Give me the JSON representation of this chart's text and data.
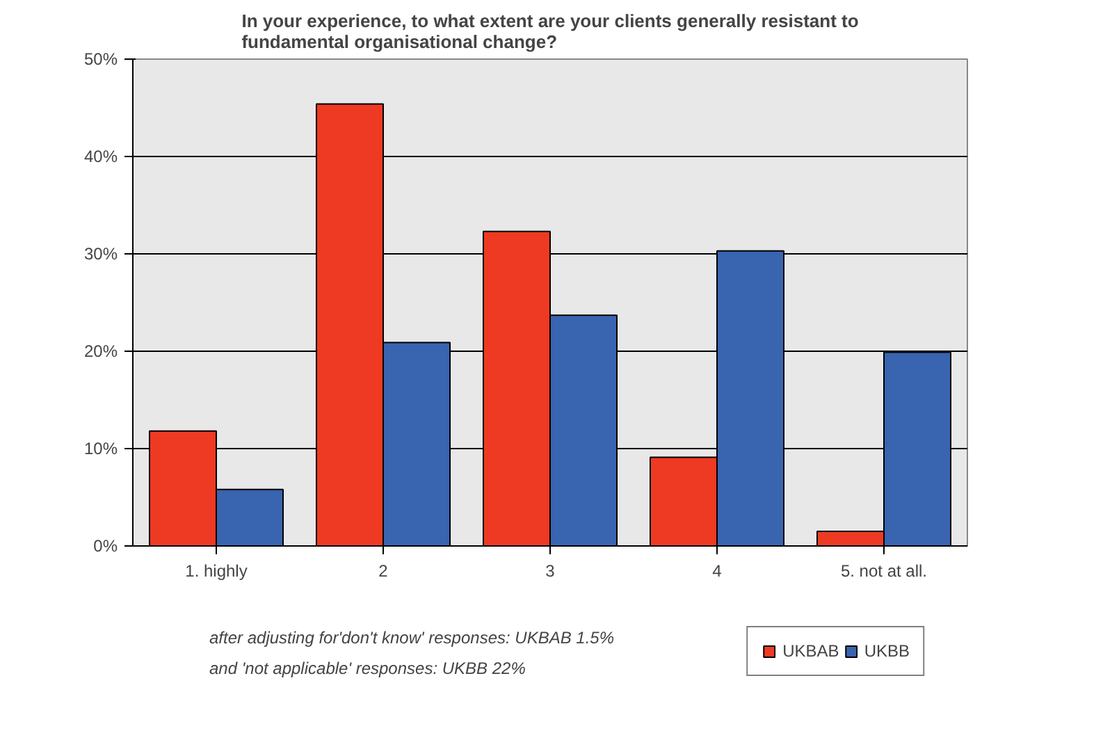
{
  "chart_data": {
    "type": "bar",
    "title": "In your experience, to what extent are your clients generally resistant to\nfundamental organisational change?",
    "categories": [
      "1. highly",
      "2",
      "3",
      "4",
      "5. not at all."
    ],
    "series": [
      {
        "name": "UKBAB",
        "color": "#ee3a22",
        "values": [
          11.8,
          45.4,
          32.3,
          9.1,
          1.5
        ]
      },
      {
        "name": "UKBB",
        "color": "#3864b0",
        "values": [
          5.8,
          20.9,
          23.7,
          30.3,
          19.9
        ]
      }
    ],
    "ylim": [
      0,
      50
    ],
    "yticks": [
      {
        "value": 0,
        "label": "0%"
      },
      {
        "value": 10,
        "label": "10%"
      },
      {
        "value": 20,
        "label": "20%"
      },
      {
        "value": 30,
        "label": "30%"
      },
      {
        "value": 40,
        "label": "40%"
      },
      {
        "value": 50,
        "label": "50%"
      }
    ],
    "grid": "y",
    "legend": "bottom right",
    "annotations": [
      "after adjusting for'don't know' responses: UKBAB 1.5%",
      "and 'not applicable' responses: UKBB 22%"
    ]
  }
}
